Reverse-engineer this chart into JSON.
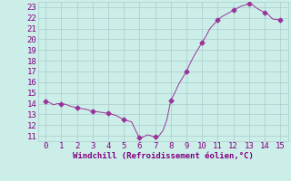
{
  "x": [
    0,
    0.25,
    0.5,
    0.75,
    1,
    1.25,
    1.5,
    1.75,
    2,
    2.25,
    2.5,
    2.75,
    3,
    3.25,
    3.5,
    3.75,
    4,
    4.25,
    4.5,
    4.75,
    5,
    5.25,
    5.5,
    5.75,
    6,
    6.25,
    6.5,
    6.75,
    7,
    7.25,
    7.5,
    7.75,
    8,
    8.25,
    8.5,
    8.75,
    9,
    9.25,
    9.5,
    9.75,
    10,
    10.25,
    10.5,
    10.75,
    11,
    11.25,
    11.5,
    11.75,
    12,
    12.25,
    12.5,
    12.75,
    13,
    13.25,
    13.5,
    13.75,
    14,
    14.25,
    14.5,
    14.75,
    15
  ],
  "y": [
    14.2,
    14.1,
    13.9,
    14.0,
    14.0,
    13.95,
    13.8,
    13.7,
    13.6,
    13.55,
    13.5,
    13.4,
    13.3,
    13.25,
    13.2,
    13.15,
    13.1,
    13.0,
    12.9,
    12.7,
    12.5,
    12.4,
    12.3,
    11.5,
    10.8,
    10.9,
    11.1,
    11.0,
    10.9,
    11.0,
    11.5,
    12.5,
    14.3,
    15.0,
    15.8,
    16.4,
    17.0,
    17.8,
    18.5,
    19.1,
    19.7,
    20.3,
    21.0,
    21.4,
    21.8,
    22.1,
    22.3,
    22.5,
    22.7,
    22.9,
    23.1,
    23.2,
    23.3,
    23.2,
    22.9,
    22.7,
    22.5,
    22.3,
    21.9,
    21.85,
    21.8
  ],
  "marker_x": [
    0,
    1,
    2,
    3,
    4,
    5,
    6,
    7,
    8,
    9,
    10,
    11,
    12,
    13,
    14,
    15
  ],
  "marker_y": [
    14.2,
    14.0,
    13.6,
    13.3,
    13.1,
    12.5,
    10.8,
    10.9,
    14.3,
    17.0,
    19.7,
    21.8,
    22.7,
    23.3,
    22.5,
    21.8
  ],
  "line_color": "#993399",
  "marker_color": "#993399",
  "bg_color": "#cceee8",
  "grid_color": "#aacccc",
  "xlabel": "Windchill (Refroidissement éolien,°C)",
  "xlim": [
    -0.5,
    15.5
  ],
  "ylim": [
    10.5,
    23.5
  ],
  "xticks": [
    0,
    1,
    2,
    3,
    4,
    5,
    6,
    7,
    8,
    9,
    10,
    11,
    12,
    13,
    14,
    15
  ],
  "yticks": [
    11,
    12,
    13,
    14,
    15,
    16,
    17,
    18,
    19,
    20,
    21,
    22,
    23
  ],
  "xlabel_color": "#800080",
  "tick_color": "#800080",
  "font_size": 6.5,
  "xlabel_font_size": 6.5,
  "lw": 0.7,
  "marker_size": 2.5
}
